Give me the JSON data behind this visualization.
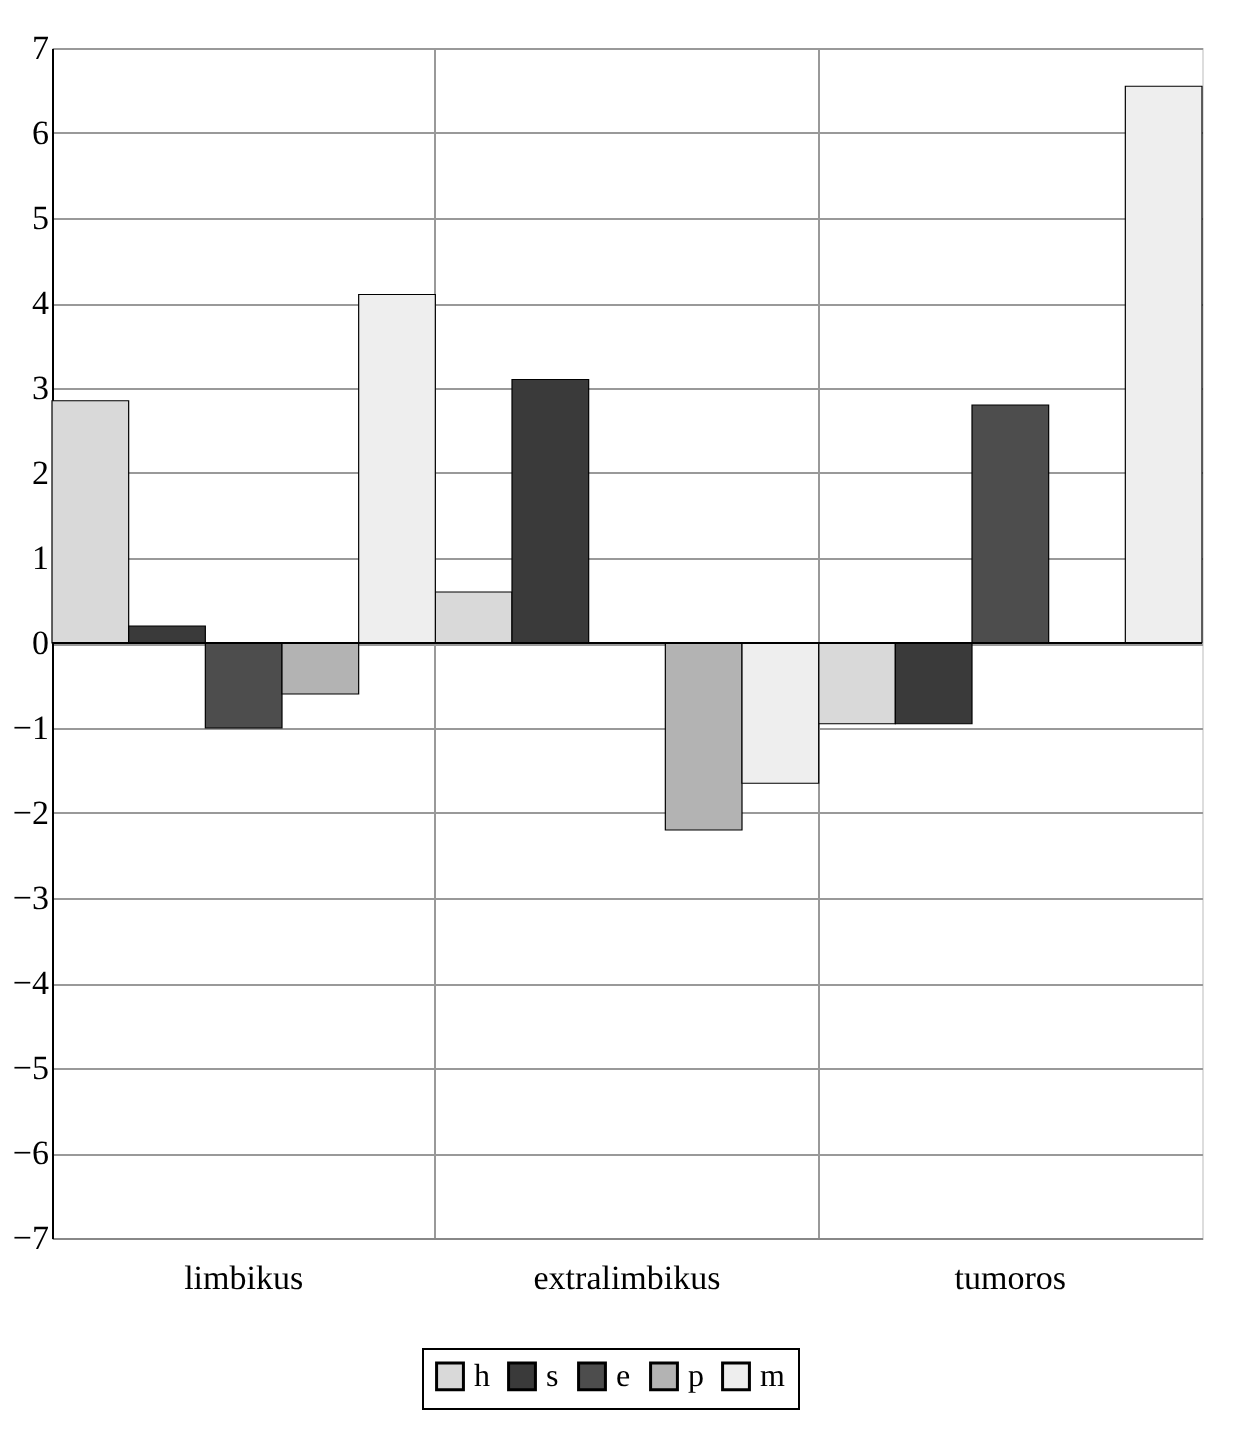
{
  "chart_data": {
    "type": "bar",
    "categories": [
      "limbikus",
      "extralimbikus",
      "tumoros"
    ],
    "series": [
      {
        "name": "h",
        "color": "#d9d9d9",
        "values": [
          2.85,
          0.6,
          -0.95
        ]
      },
      {
        "name": "s",
        "color": "#3a3a3a",
        "values": [
          0.2,
          3.1,
          -0.95
        ]
      },
      {
        "name": "e",
        "color": "#4d4d4d",
        "values": [
          -1.0,
          null,
          2.8
        ]
      },
      {
        "name": "p",
        "color": "#b3b3b3",
        "values": [
          -0.6,
          -2.2,
          null
        ]
      },
      {
        "name": "m",
        "color": "#eeeeee",
        "values": [
          4.1,
          -1.65,
          6.55
        ]
      }
    ],
    "ylim": [
      -7,
      7
    ],
    "yticks": [
      -7,
      -6,
      -5,
      -4,
      -3,
      -2,
      -1,
      0,
      1,
      2,
      3,
      4,
      5,
      6,
      7
    ],
    "grid": true,
    "legend": "bottom"
  }
}
